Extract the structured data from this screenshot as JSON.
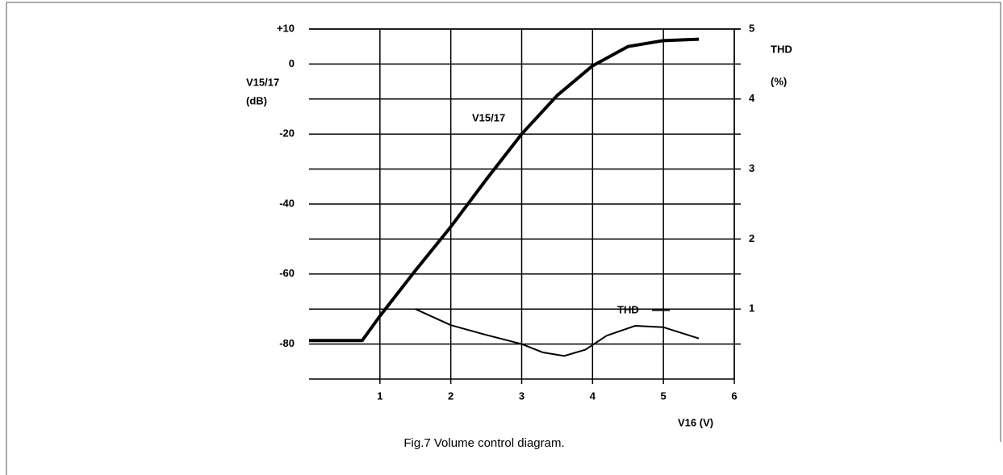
{
  "chart_data": {
    "type": "line",
    "caption": "Fig.7  Volume control diagram.",
    "xlabel": "V16  (V)",
    "ylabel": "V15/17",
    "ylabel_unit": "(dB)",
    "y2label": "THD",
    "y2label_unit": "(%)",
    "xlim": [
      0,
      6
    ],
    "xticks": [
      1,
      2,
      3,
      4,
      5,
      6
    ],
    "ylim": [
      -90,
      10
    ],
    "yticks": [
      {
        "value": 10,
        "label": "+10"
      },
      0,
      -20,
      -40,
      -60,
      -80
    ],
    "y2lim": [
      0,
      5
    ],
    "y2ticks": [
      1,
      2,
      3,
      4,
      5
    ],
    "grid": true,
    "series": [
      {
        "name": "V15/17",
        "color": "#000000",
        "x": [
          0,
          0.75,
          1,
          1.5,
          2,
          2.5,
          3,
          3.5,
          4,
          4.5,
          5,
          5.5
        ],
        "values": [
          -79,
          -79,
          -72,
          -59,
          -46.5,
          -33,
          -20,
          -9,
          -0.5,
          5,
          6.7,
          7.1
        ]
      },
      {
        "name": "THD",
        "color": "#000000",
        "axis": "y2",
        "x": [
          1.5,
          2,
          2.5,
          3,
          3.3,
          3.6,
          3.9,
          4.2,
          4.6,
          5,
          5.5
        ],
        "values": [
          1.0,
          0.77,
          0.63,
          0.5,
          0.38,
          0.33,
          0.42,
          0.62,
          0.76,
          0.74,
          0.58
        ]
      }
    ]
  }
}
